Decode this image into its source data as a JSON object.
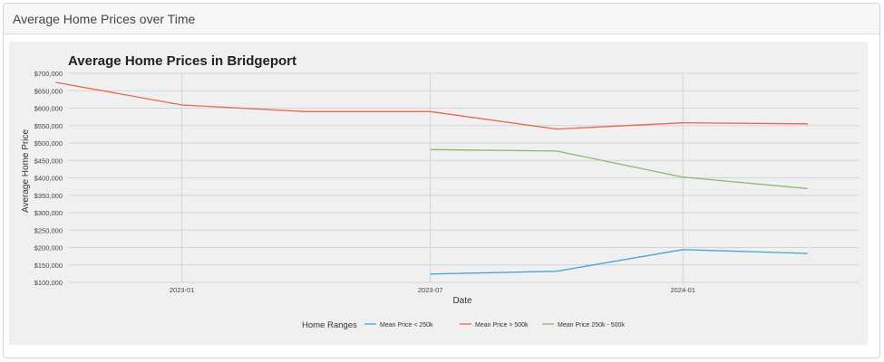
{
  "card": {
    "title": "Average Home Prices over Time"
  },
  "chart_data": {
    "type": "line",
    "title": "Average Home Prices in Bridgeport",
    "xlabel": "Date",
    "ylabel": "Average Home Price",
    "x_ticks": [
      "2023-01",
      "2023-07",
      "2024-01"
    ],
    "y_ticks": [
      "$100,000",
      "$150,000",
      "$200,000",
      "$250,000",
      "$300,000",
      "$350,000",
      "$400,000",
      "$450,000",
      "$500,000",
      "$550,000",
      "$600,000",
      "$650,000",
      "$700,000"
    ],
    "ylim": [
      100000,
      700000
    ],
    "xlim": [
      "2022-10-10",
      "2024-05-08"
    ],
    "grid": true,
    "legend": {
      "title": "Home Ranges",
      "position": "bottom",
      "entries": [
        "Mean Price < 250k",
        "Mean Price > 500k",
        "Mean Price 250k - 500k"
      ]
    },
    "series": [
      {
        "name": "Mean Price < 250k",
        "color": "#4aa3d6",
        "points": [
          {
            "x": "2023-07-01",
            "y": 124000
          },
          {
            "x": "2023-10-01",
            "y": 132000
          },
          {
            "x": "2024-01-01",
            "y": 194000
          },
          {
            "x": "2024-04-01",
            "y": 183000
          }
        ]
      },
      {
        "name": "Mean Price > 500k",
        "color": "#e8664b",
        "points": [
          {
            "x": "2022-10-01",
            "y": 674000
          },
          {
            "x": "2023-01-01",
            "y": 609000
          },
          {
            "x": "2023-04-01",
            "y": 590000
          },
          {
            "x": "2023-07-01",
            "y": 590000
          },
          {
            "x": "2023-10-01",
            "y": 540000
          },
          {
            "x": "2024-01-01",
            "y": 558000
          },
          {
            "x": "2024-04-01",
            "y": 555000
          }
        ]
      },
      {
        "name": "Mean Price 250k - 500k",
        "color": "#8db86a",
        "points": [
          {
            "x": "2023-07-01",
            "y": 481000
          },
          {
            "x": "2023-10-01",
            "y": 477000
          },
          {
            "x": "2024-01-01",
            "y": 402000
          },
          {
            "x": "2024-04-01",
            "y": 369000
          }
        ]
      }
    ]
  }
}
